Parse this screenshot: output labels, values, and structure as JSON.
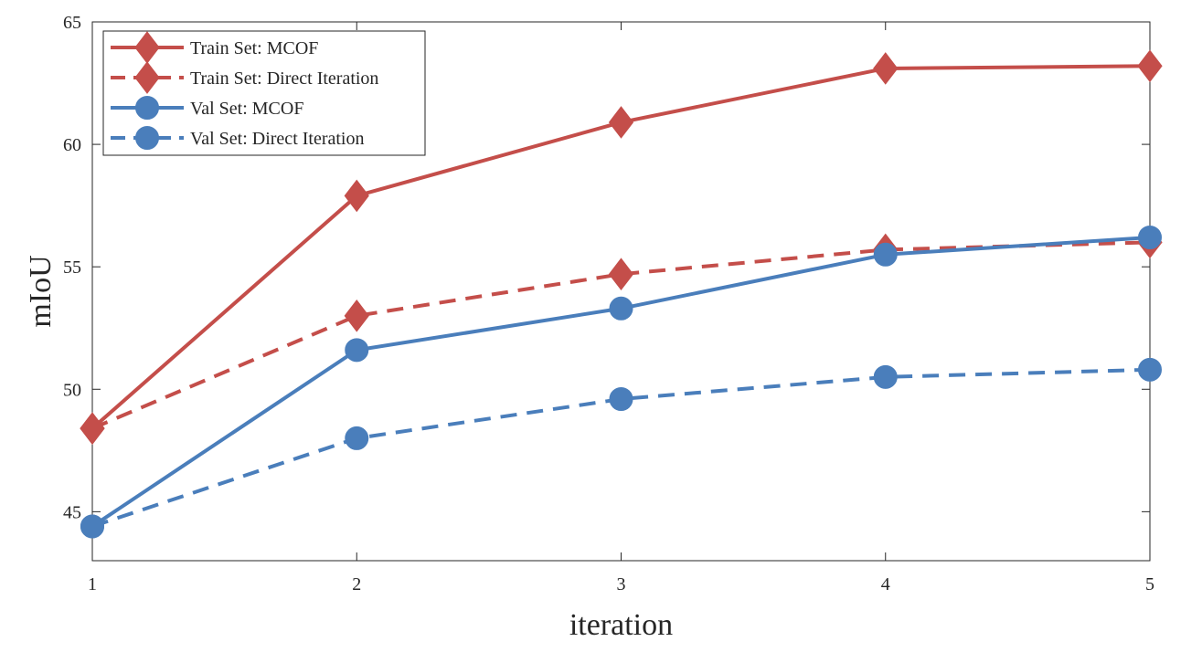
{
  "chart_data": {
    "type": "line",
    "title": "",
    "xlabel": "iteration",
    "ylabel": "mIoU",
    "x": [
      1,
      2,
      3,
      4,
      5
    ],
    "xlim": [
      1,
      5
    ],
    "ylim": [
      43,
      65
    ],
    "xticks": [
      1,
      2,
      3,
      4,
      5
    ],
    "yticks": [
      45,
      50,
      55,
      60,
      65
    ],
    "grid": false,
    "legend_position": "top-left",
    "series": [
      {
        "name": "Train Set: MCOF",
        "values": [
          48.4,
          57.9,
          60.9,
          63.1,
          63.2
        ],
        "color": "#c44e4a",
        "line_style": "solid",
        "marker": "diamond"
      },
      {
        "name": "Train Set: Direct Iteration",
        "values": [
          48.4,
          53.0,
          54.7,
          55.7,
          56.0
        ],
        "color": "#c44e4a",
        "line_style": "dashed",
        "marker": "diamond"
      },
      {
        "name": "Val Set: MCOF",
        "values": [
          44.4,
          51.6,
          53.3,
          55.5,
          56.2
        ],
        "color": "#4a7ebb",
        "line_style": "solid",
        "marker": "circle"
      },
      {
        "name": "Val Set: Direct Iteration",
        "values": [
          44.4,
          48.0,
          49.6,
          50.5,
          50.8
        ],
        "color": "#4a7ebb",
        "line_style": "dashed",
        "marker": "circle"
      }
    ]
  }
}
